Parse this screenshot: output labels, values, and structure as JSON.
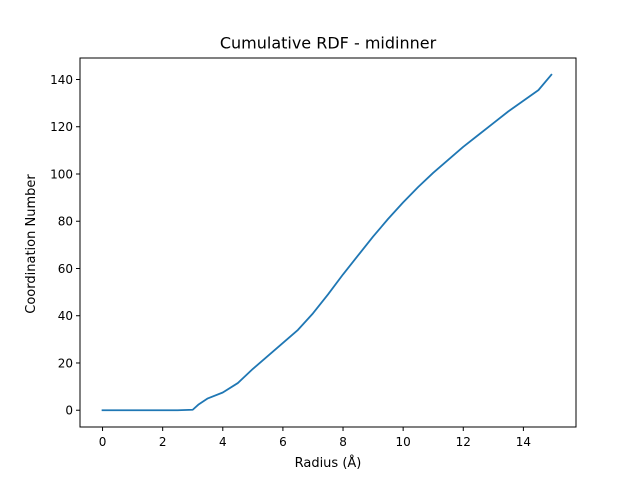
{
  "chart_data": {
    "type": "line",
    "title": "Cumulative RDF - midinner",
    "xlabel": "Radius (Å)",
    "ylabel": "Coordination Number",
    "xlim": [
      -0.75,
      15.75
    ],
    "ylim": [
      -7.1,
      149.1
    ],
    "xticks": [
      0,
      2,
      4,
      6,
      8,
      10,
      12,
      14
    ],
    "yticks": [
      0,
      20,
      40,
      60,
      80,
      100,
      120,
      140
    ],
    "grid": false,
    "series": [
      {
        "color": "#1f77b4",
        "x": [
          0,
          1,
          2,
          2.5,
          3.0,
          3.2,
          3.5,
          4.0,
          4.5,
          5.0,
          5.5,
          6.0,
          6.5,
          7.0,
          7.5,
          8.0,
          8.5,
          9.0,
          9.5,
          10.0,
          10.5,
          11.0,
          11.5,
          12.0,
          12.5,
          13.0,
          13.5,
          14.0,
          14.5,
          14.93
        ],
        "y": [
          0,
          0,
          0,
          0,
          0.2,
          2.5,
          5.0,
          7.5,
          11.5,
          17.5,
          23.0,
          28.5,
          34.0,
          41.0,
          49.0,
          57.5,
          65.5,
          73.5,
          81.0,
          88.0,
          94.5,
          100.5,
          106.0,
          111.5,
          116.5,
          121.5,
          126.5,
          131.0,
          135.5,
          142.0
        ]
      }
    ]
  }
}
